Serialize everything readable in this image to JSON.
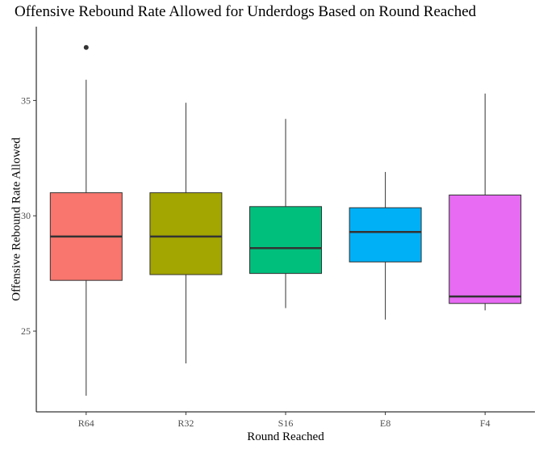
{
  "chart_data": {
    "type": "boxplot",
    "title": "Offensive Rebound Rate Allowed for Underdogs Based on Round Reached",
    "xlabel": "Round Reached",
    "ylabel": "Offensive Rebound Rate Allowed",
    "categories": [
      "R64",
      "R32",
      "S16",
      "E8",
      "F4"
    ],
    "ylim": [
      21.5,
      38.2
    ],
    "yticks": [
      25,
      30,
      35
    ],
    "grid": false,
    "legend": "none",
    "boxes": [
      {
        "category": "R64",
        "whisker_low": 22.2,
        "q1": 27.2,
        "median": 29.1,
        "q3": 31.0,
        "whisker_high": 35.9,
        "outliers": [
          37.3
        ],
        "color": "#F8766D"
      },
      {
        "category": "R32",
        "whisker_low": 23.6,
        "q1": 27.45,
        "median": 29.1,
        "q3": 31.0,
        "whisker_high": 34.9,
        "outliers": [],
        "color": "#A3A500"
      },
      {
        "category": "S16",
        "whisker_low": 26.0,
        "q1": 27.5,
        "median": 28.6,
        "q3": 30.4,
        "whisker_high": 34.2,
        "outliers": [],
        "color": "#00BF7D"
      },
      {
        "category": "E8",
        "whisker_low": 25.5,
        "q1": 28.0,
        "median": 29.3,
        "q3": 30.35,
        "whisker_high": 31.9,
        "outliers": [],
        "color": "#00B0F6"
      },
      {
        "category": "F4",
        "whisker_low": 25.9,
        "q1": 26.2,
        "median": 26.5,
        "q3": 30.9,
        "whisker_high": 35.3,
        "outliers": [],
        "color": "#E76BF3"
      }
    ]
  }
}
